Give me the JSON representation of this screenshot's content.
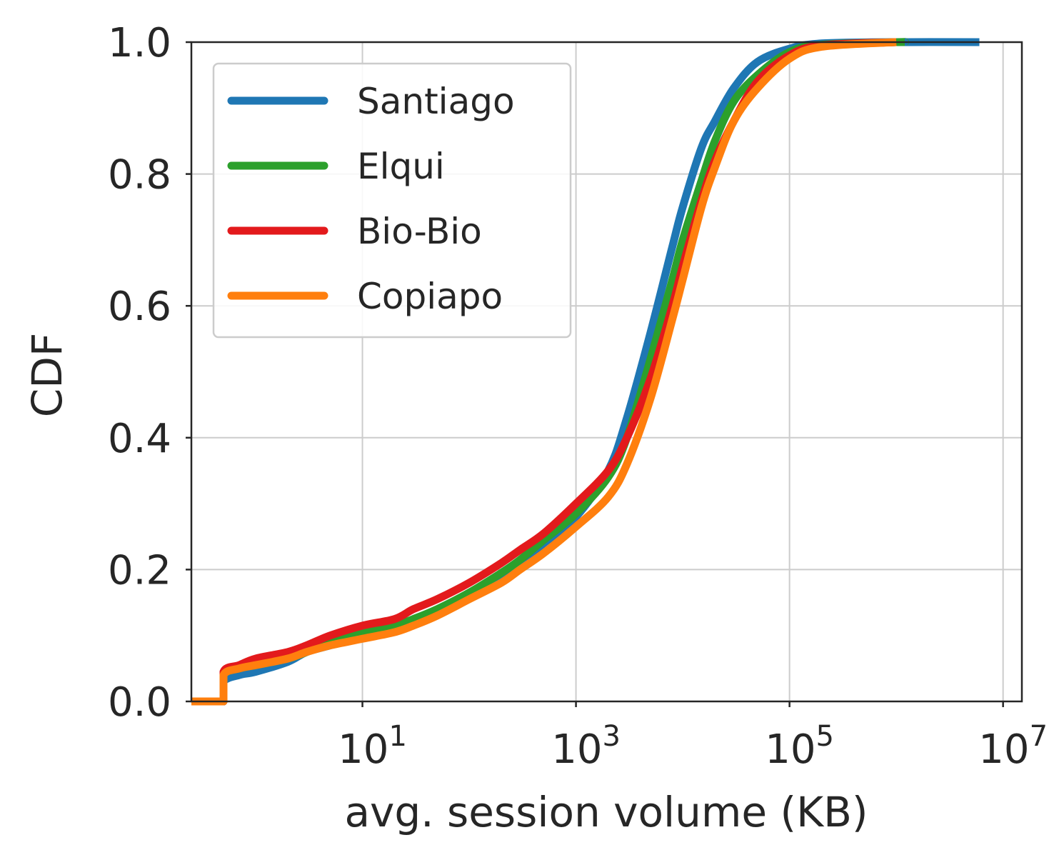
{
  "chart_data": {
    "type": "line",
    "xlabel": "avg. session volume (KB)",
    "ylabel": "CDF",
    "x_scale": "log",
    "xlim": [
      0.25,
      15000000
    ],
    "ylim": [
      0,
      1.0
    ],
    "x_ticks": [
      {
        "value": 10,
        "base": "10",
        "exp": "1"
      },
      {
        "value": 1000,
        "base": "10",
        "exp": "3"
      },
      {
        "value": 100000,
        "base": "10",
        "exp": "5"
      },
      {
        "value": 10000000,
        "base": "10",
        "exp": "7"
      }
    ],
    "y_ticks": [
      {
        "value": 0.0,
        "label": "0.0"
      },
      {
        "value": 0.2,
        "label": "0.2"
      },
      {
        "value": 0.4,
        "label": "0.4"
      },
      {
        "value": 0.6,
        "label": "0.6"
      },
      {
        "value": 0.8,
        "label": "0.8"
      },
      {
        "value": 1.0,
        "label": "1.0"
      }
    ],
    "grid": true,
    "legend_position": "top-left",
    "series": [
      {
        "name": "Santiago",
        "color": "#1f77b4",
        "points": [
          [
            0.25,
            0
          ],
          [
            0.5,
            0
          ],
          [
            0.5,
            0.03
          ],
          [
            0.7,
            0.04
          ],
          [
            1.0,
            0.045
          ],
          [
            2.0,
            0.06
          ],
          [
            3.0,
            0.075
          ],
          [
            5.0,
            0.085
          ],
          [
            10,
            0.1
          ],
          [
            20,
            0.112
          ],
          [
            30,
            0.12
          ],
          [
            50,
            0.135
          ],
          [
            100,
            0.16
          ],
          [
            200,
            0.19
          ],
          [
            300,
            0.21
          ],
          [
            500,
            0.24
          ],
          [
            1000,
            0.28
          ],
          [
            2000,
            0.35
          ],
          [
            3000,
            0.43
          ],
          [
            5000,
            0.56
          ],
          [
            8000,
            0.69
          ],
          [
            10000,
            0.75
          ],
          [
            15000,
            0.84
          ],
          [
            20000,
            0.88
          ],
          [
            30000,
            0.93
          ],
          [
            50000,
            0.97
          ],
          [
            100000,
            0.99
          ],
          [
            200000,
            0.998
          ],
          [
            1000000,
            1.0
          ],
          [
            6000000,
            1.0
          ]
        ]
      },
      {
        "name": "Elqui",
        "color": "#2ca02c",
        "points": [
          [
            0.25,
            0
          ],
          [
            0.5,
            0
          ],
          [
            0.5,
            0.04
          ],
          [
            0.7,
            0.05
          ],
          [
            1.0,
            0.055
          ],
          [
            2.0,
            0.065
          ],
          [
            3.0,
            0.075
          ],
          [
            5.0,
            0.09
          ],
          [
            10,
            0.105
          ],
          [
            20,
            0.115
          ],
          [
            30,
            0.125
          ],
          [
            50,
            0.14
          ],
          [
            100,
            0.165
          ],
          [
            200,
            0.195
          ],
          [
            300,
            0.215
          ],
          [
            500,
            0.245
          ],
          [
            1000,
            0.285
          ],
          [
            2000,
            0.34
          ],
          [
            3000,
            0.4
          ],
          [
            5000,
            0.52
          ],
          [
            8000,
            0.64
          ],
          [
            10000,
            0.7
          ],
          [
            15000,
            0.79
          ],
          [
            20000,
            0.85
          ],
          [
            30000,
            0.91
          ],
          [
            50000,
            0.95
          ],
          [
            100000,
            0.985
          ],
          [
            200000,
            0.996
          ],
          [
            1000000,
            1.0
          ],
          [
            1200000,
            1.0
          ]
        ]
      },
      {
        "name": "Bio-Bio",
        "color": "#e31a1c",
        "points": [
          [
            0.25,
            0
          ],
          [
            0.5,
            0
          ],
          [
            0.5,
            0.045
          ],
          [
            0.7,
            0.055
          ],
          [
            1.0,
            0.065
          ],
          [
            2.0,
            0.075
          ],
          [
            3.0,
            0.085
          ],
          [
            5.0,
            0.1
          ],
          [
            10,
            0.115
          ],
          [
            20,
            0.125
          ],
          [
            30,
            0.14
          ],
          [
            50,
            0.155
          ],
          [
            100,
            0.18
          ],
          [
            200,
            0.21
          ],
          [
            300,
            0.23
          ],
          [
            500,
            0.255
          ],
          [
            1000,
            0.3
          ],
          [
            2000,
            0.35
          ],
          [
            3000,
            0.4
          ],
          [
            5000,
            0.49
          ],
          [
            8000,
            0.6
          ],
          [
            10000,
            0.66
          ],
          [
            15000,
            0.76
          ],
          [
            20000,
            0.82
          ],
          [
            30000,
            0.88
          ],
          [
            50000,
            0.94
          ],
          [
            100000,
            0.98
          ],
          [
            200000,
            0.995
          ],
          [
            1000000,
            1.0
          ]
        ]
      },
      {
        "name": "Copiapo",
        "color": "#ff7f0e",
        "points": [
          [
            0.25,
            0
          ],
          [
            0.5,
            0
          ],
          [
            0.5,
            0.04
          ],
          [
            0.7,
            0.05
          ],
          [
            1.0,
            0.055
          ],
          [
            2.0,
            0.065
          ],
          [
            3.0,
            0.075
          ],
          [
            5.0,
            0.085
          ],
          [
            10,
            0.095
          ],
          [
            20,
            0.105
          ],
          [
            30,
            0.115
          ],
          [
            50,
            0.13
          ],
          [
            100,
            0.155
          ],
          [
            200,
            0.18
          ],
          [
            300,
            0.2
          ],
          [
            500,
            0.225
          ],
          [
            1000,
            0.265
          ],
          [
            2000,
            0.31
          ],
          [
            3000,
            0.36
          ],
          [
            5000,
            0.46
          ],
          [
            8000,
            0.58
          ],
          [
            10000,
            0.64
          ],
          [
            15000,
            0.75
          ],
          [
            20000,
            0.81
          ],
          [
            30000,
            0.88
          ],
          [
            50000,
            0.93
          ],
          [
            100000,
            0.975
          ],
          [
            200000,
            0.993
          ],
          [
            1000000,
            1.0
          ]
        ]
      }
    ]
  }
}
